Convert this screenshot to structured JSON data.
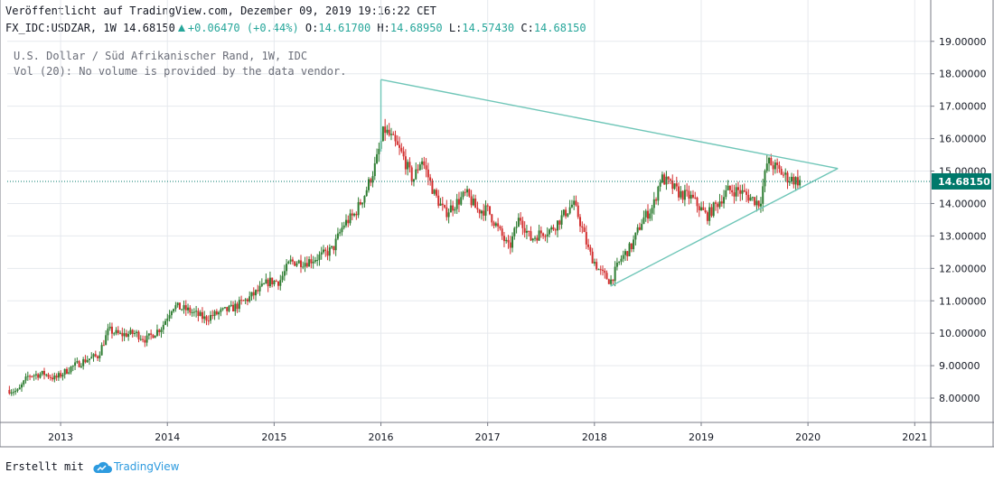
{
  "header": {
    "published": "Veröffentlicht auf TradingView.com, Dezember 09, 2019 19:16:22 CET",
    "symbol": "FX_IDC:USDZAR, 1W",
    "last": "14.68150",
    "change": "+0.06470 (+0.44%)",
    "o_label": "O:",
    "o_value": "14.61700",
    "h_label": "H:",
    "h_value": "14.68950",
    "l_label": "L:",
    "l_value": "14.57430",
    "c_label": "C:",
    "c_value": "14.68150"
  },
  "legend": {
    "line1": "U.S. Dollar / Süd Afrikanischer Rand, 1W, IDC",
    "line2": "Vol (20): No volume is provided by the data vendor."
  },
  "footer": {
    "prefix": "Erstellt mit",
    "brand": "TradingView"
  },
  "colors": {
    "up": "#26a69a",
    "down": "#ef5350",
    "candle_up": "#2e7d32",
    "candle_down": "#d32f2f",
    "grid": "#e6e9ee",
    "axis": "#787b86",
    "triangle": "#6fc6b8",
    "price_tag": "#00796b"
  },
  "chart_data": {
    "type": "candlestick",
    "symbol": "FX_IDC:USDZAR",
    "interval": "1W",
    "x_range": [
      2012.5,
      2021.15
    ],
    "y_range": [
      7.25,
      19.05
    ],
    "x_ticks": [
      2013,
      2014,
      2015,
      2016,
      2017,
      2018,
      2019,
      2020,
      2021
    ],
    "y_ticks": [
      "8.00000",
      "9.00000",
      "10.00000",
      "11.00000",
      "12.00000",
      "13.00000",
      "14.00000",
      "15.00000",
      "16.00000",
      "17.00000",
      "18.00000",
      "19.00000"
    ],
    "last_price": "14.68150",
    "grid": true,
    "close_path": [
      [
        2012.52,
        8.25
      ],
      [
        2012.6,
        8.2
      ],
      [
        2012.7,
        8.7
      ],
      [
        2012.85,
        8.75
      ],
      [
        2012.95,
        8.6
      ],
      [
        2013.1,
        8.95
      ],
      [
        2013.25,
        9.2
      ],
      [
        2013.35,
        9.3
      ],
      [
        2013.45,
        10.1
      ],
      [
        2013.55,
        9.95
      ],
      [
        2013.7,
        10.0
      ],
      [
        2013.8,
        9.8
      ],
      [
        2013.95,
        10.2
      ],
      [
        2014.05,
        10.85
      ],
      [
        2014.2,
        10.7
      ],
      [
        2014.35,
        10.45
      ],
      [
        2014.5,
        10.65
      ],
      [
        2014.6,
        10.75
      ],
      [
        2014.75,
        11.05
      ],
      [
        2014.85,
        11.3
      ],
      [
        2014.95,
        11.6
      ],
      [
        2015.05,
        11.6
      ],
      [
        2015.15,
        12.2
      ],
      [
        2015.3,
        12.2
      ],
      [
        2015.45,
        12.4
      ],
      [
        2015.55,
        12.6
      ],
      [
        2015.65,
        13.35
      ],
      [
        2015.75,
        13.65
      ],
      [
        2015.85,
        14.3
      ],
      [
        2015.95,
        15.2
      ],
      [
        2016.03,
        16.3
      ],
      [
        2016.1,
        16.0
      ],
      [
        2016.2,
        15.5
      ],
      [
        2016.3,
        14.7
      ],
      [
        2016.38,
        15.4
      ],
      [
        2016.5,
        14.3
      ],
      [
        2016.6,
        13.7
      ],
      [
        2016.7,
        14.0
      ],
      [
        2016.8,
        14.3
      ],
      [
        2016.9,
        13.8
      ],
      [
        2017.0,
        13.8
      ],
      [
        2017.1,
        13.2
      ],
      [
        2017.2,
        12.6
      ],
      [
        2017.3,
        13.6
      ],
      [
        2017.4,
        12.9
      ],
      [
        2017.5,
        13.1
      ],
      [
        2017.6,
        13.2
      ],
      [
        2017.7,
        13.6
      ],
      [
        2017.8,
        14.0
      ],
      [
        2017.85,
        13.6
      ],
      [
        2017.95,
        12.5
      ],
      [
        2018.05,
        11.9
      ],
      [
        2018.15,
        11.6
      ],
      [
        2018.25,
        12.3
      ],
      [
        2018.35,
        12.7
      ],
      [
        2018.45,
        13.5
      ],
      [
        2018.55,
        13.9
      ],
      [
        2018.62,
        14.8
      ],
      [
        2018.7,
        14.6
      ],
      [
        2018.8,
        14.3
      ],
      [
        2018.9,
        14.2
      ],
      [
        2018.98,
        13.9
      ],
      [
        2019.05,
        13.6
      ],
      [
        2019.15,
        14.0
      ],
      [
        2019.25,
        14.4
      ],
      [
        2019.35,
        14.4
      ],
      [
        2019.45,
        14.2
      ],
      [
        2019.55,
        14.0
      ],
      [
        2019.62,
        15.3
      ],
      [
        2019.7,
        15.1
      ],
      [
        2019.8,
        14.8
      ],
      [
        2019.9,
        14.7
      ],
      [
        2019.94,
        14.68
      ]
    ],
    "trendlines": [
      {
        "name": "upper",
        "points": [
          [
            2016.0,
            17.82
          ],
          [
            2020.28,
            15.08
          ]
        ]
      },
      {
        "name": "lower",
        "points": [
          [
            2018.15,
            11.45
          ],
          [
            2020.28,
            15.08
          ]
        ]
      },
      {
        "name": "apex-vertical",
        "points": [
          [
            2016.0,
            17.82
          ],
          [
            2016.0,
            15.6
          ]
        ]
      }
    ]
  }
}
